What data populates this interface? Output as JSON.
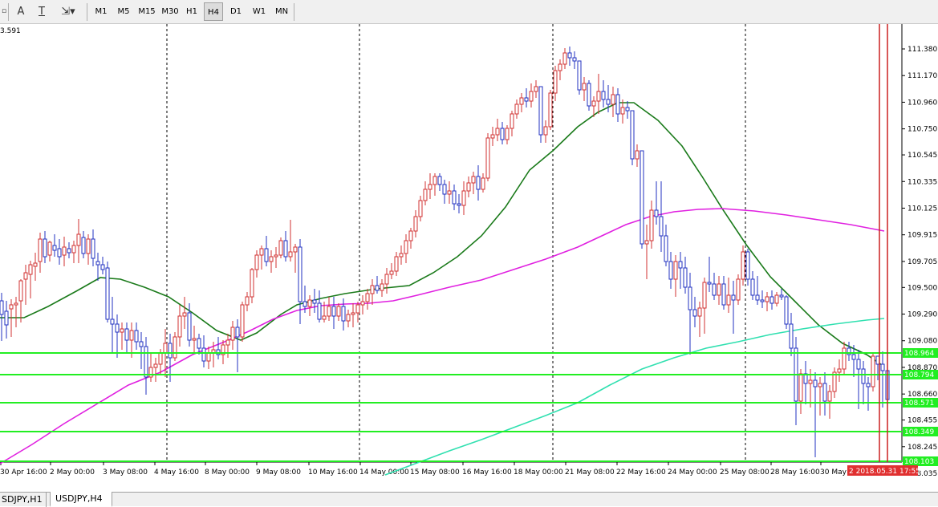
{
  "toolbar": {
    "font_label": "A",
    "text_label": "T",
    "timeframes": [
      "M1",
      "M5",
      "M15",
      "M30",
      "H1",
      "H4",
      "D1",
      "W1",
      "MN"
    ],
    "active_timeframe": "H4"
  },
  "chart": {
    "top_left_value": "3.591",
    "price_axis": [
      "111.380",
      "111.170",
      "110.960",
      "110.750",
      "110.545",
      "110.335",
      "110.125",
      "109.915",
      "109.705",
      "109.500",
      "109.290",
      "109.080",
      "108.870",
      "108.660",
      "108.455",
      "108.245",
      "108.035"
    ],
    "time_axis": [
      "30 Apr 16:00",
      "2 May 00:00",
      "3 May 08:00",
      "4 May 16:00",
      "8 May 00:00",
      "9 May 08:00",
      "10 May 16:00",
      "14 May 00:00",
      "15 May 08:00",
      "16 May 16:00",
      "18 May 00:00",
      "21 May 08:00",
      "22 May 16:00",
      "24 May 00:00",
      "25 May 08:00",
      "28 May 16:00",
      "30 May"
    ],
    "current_time_label": "2 2018.05.31 17:55",
    "level_labels": [
      "108.964",
      "108.794",
      "108.571",
      "108.349",
      "108.103"
    ],
    "colors": {
      "up_candle": "#d03030",
      "down_candle": "#2030c0",
      "ma_fast": "#1a7a1a",
      "ma_mid": "#e020e0",
      "ma_slow": "#30e0b0",
      "levels": "#22ee22",
      "time_marker": "#cc2020"
    }
  },
  "tabs": {
    "left": "SDJPY,H1",
    "right": "USDJPY,H4"
  }
}
